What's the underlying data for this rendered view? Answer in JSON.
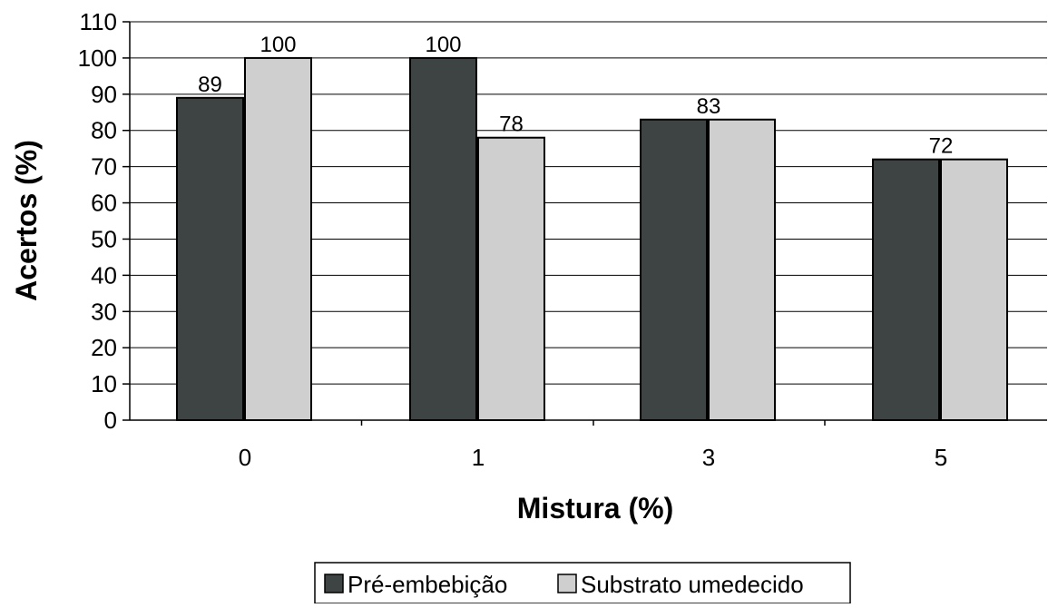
{
  "chart_data": {
    "type": "bar",
    "title": "",
    "xlabel": "Mistura (%)",
    "ylabel": "Acertos (%)",
    "ylim": [
      0,
      110
    ],
    "y_ticks": [
      0,
      10,
      20,
      30,
      40,
      50,
      60,
      70,
      80,
      90,
      100,
      110
    ],
    "grid": true,
    "legend_position": "bottom-center",
    "categories": [
      "0",
      "1",
      "3",
      "5"
    ],
    "series": [
      {
        "name": "Pré-embebição",
        "values": [
          89,
          100,
          83,
          72
        ],
        "labels": [
          "89",
          "100",
          "",
          ""
        ],
        "color": "#3e4443"
      },
      {
        "name": "Substrato umedecido",
        "values": [
          100,
          78,
          83,
          72
        ],
        "labels": [
          "100",
          "78",
          "",
          ""
        ],
        "color": "#cfcfcf"
      }
    ],
    "shared_labels": [
      "",
      "",
      "83",
      "72"
    ]
  },
  "colors": {
    "axis": "#000000",
    "grid": "#000000",
    "bar_outline": "#000000"
  }
}
